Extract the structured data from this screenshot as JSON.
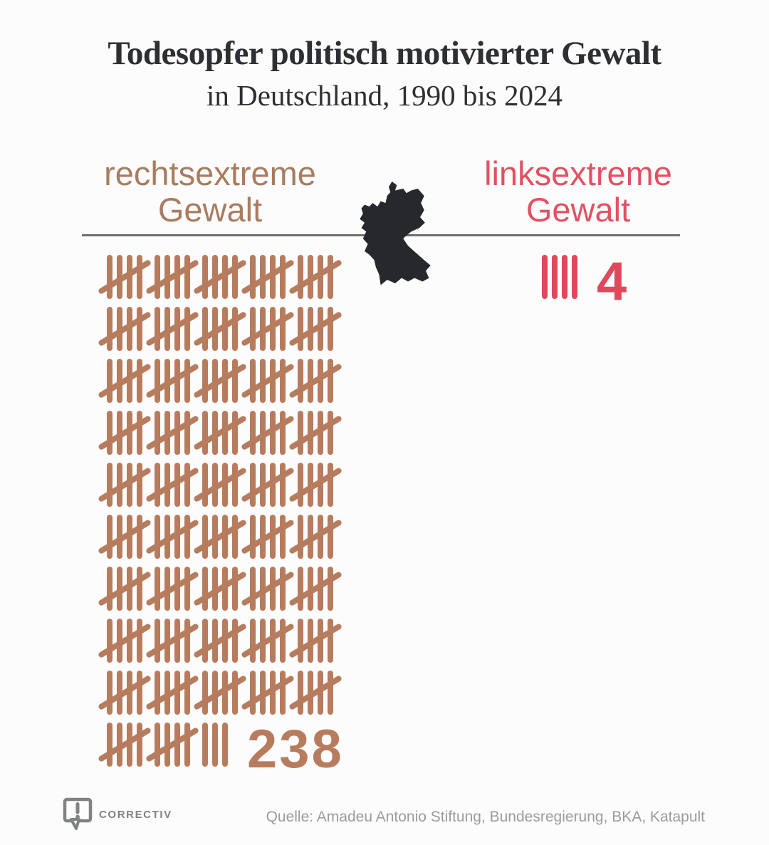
{
  "title": "Todesopfer politisch motivierter Gewalt",
  "subtitle": "in Deutschland, 1990 bis 2024",
  "chart_data": {
    "type": "pictogram",
    "subtype": "tally-marks",
    "title": "Todesopfer politisch motivierter Gewalt",
    "subtitle": "in Deutschland, 1990 bis 2024",
    "categories": [
      "rechtsextreme Gewalt",
      "linksextreme Gewalt"
    ],
    "values": [
      238,
      4
    ],
    "series": [
      {
        "name": "rechtsextreme Gewalt",
        "label_line1": "rechtsextreme",
        "label_line2": "Gewalt",
        "value": 238,
        "value_label": "238",
        "color": "#b77c5e",
        "label_color": "#a97c60",
        "tally_unit": 5,
        "groups_per_row": 5
      },
      {
        "name": "linksextreme Gewalt",
        "label_line1": "linksextreme",
        "label_line2": "Gewalt",
        "value": 4,
        "value_label": "4",
        "color": "#e0485c",
        "label_color": "#e25163",
        "tally_unit": 5,
        "groups_per_row": 5
      }
    ],
    "annotations": [
      "black silhouette map of Germany centered between the two columns, crossing the divider line"
    ],
    "legend_position": "none",
    "grid": false
  },
  "footer": {
    "logo_text": "CORRECTIV",
    "source": "Quelle: Amadeu Antonio Stiftung, Bundesregierung, BKA, Katapult"
  },
  "colors": {
    "background": "#fcfcfc",
    "title": "#2d2f33",
    "divider": "#707070",
    "map": "#26282c",
    "source_text": "#9b9b9b",
    "logo": "#7f8184"
  }
}
